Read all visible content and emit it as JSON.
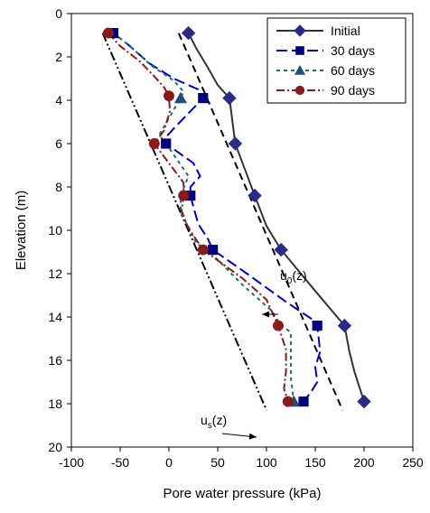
{
  "chart_data": {
    "type": "line",
    "xlabel": "Pore water pressure (kPa)",
    "ylabel": "Elevation (m)",
    "xlim": [
      -100,
      250
    ],
    "ylim": [
      0,
      20
    ],
    "y_inverted": true,
    "xticks": [
      -100,
      -50,
      0,
      50,
      100,
      150,
      200,
      250
    ],
    "yticks": [
      0,
      2,
      4,
      6,
      8,
      10,
      12,
      14,
      16,
      18,
      20
    ],
    "grid": false,
    "legend_position": "top-right",
    "series": [
      {
        "name": "Initial",
        "color": "#333333",
        "marker_color": "#2a2a8c",
        "marker": "diamond",
        "dash": "solid",
        "x": [
          20,
          28,
          40,
          50,
          62,
          68,
          78,
          88,
          100,
          115,
          150,
          180,
          185,
          190,
          200
        ],
        "y": [
          0.9,
          1.6,
          2.5,
          3.3,
          3.9,
          6.0,
          7.2,
          8.4,
          9.8,
          10.9,
          12.8,
          14.4,
          15.6,
          16.5,
          17.9
        ]
      },
      {
        "name": "30 days",
        "color": "#0000cc",
        "marker_color": "#000080",
        "marker": "square",
        "dash": "longdash",
        "x": [
          -57,
          -40,
          -20,
          5,
          30,
          35,
          20,
          5,
          -5,
          -3,
          25,
          32,
          22,
          22,
          25,
          30,
          40,
          45,
          80,
          120,
          150,
          152,
          155,
          150,
          152,
          145,
          138
        ],
        "y": [
          0.9,
          1.5,
          2.3,
          3.0,
          3.5,
          3.9,
          4.6,
          5.3,
          5.8,
          6.0,
          6.9,
          7.5,
          8.0,
          8.4,
          8.9,
          9.7,
          10.4,
          10.9,
          12.0,
          13.3,
          14.2,
          14.4,
          15.6,
          16.3,
          17.0,
          17.5,
          17.9
        ]
      },
      {
        "name": "60 days",
        "color": "#1f6f6f",
        "marker_color": "#1f4e79",
        "marker": "triangle",
        "dash": "shortdash",
        "x": [
          -57,
          -40,
          -18,
          5,
          15,
          12,
          -10,
          -3,
          20,
          12,
          12,
          22,
          28,
          40,
          75,
          105,
          115,
          125,
          125,
          125,
          128
        ],
        "y": [
          0.9,
          1.5,
          2.4,
          3.1,
          3.6,
          3.9,
          5.6,
          6.0,
          7.5,
          8.4,
          9.2,
          10.0,
          10.6,
          10.9,
          12.5,
          13.7,
          14.4,
          14.7,
          15.8,
          16.8,
          17.9
        ]
      },
      {
        "name": "90 days",
        "color": "#8b1a1a",
        "marker_color": "#8b1a1a",
        "marker": "circle",
        "dash": "dashdot",
        "x": [
          -62,
          -50,
          -30,
          -15,
          -5,
          0,
          1,
          -5,
          -15,
          5,
          15,
          15,
          13,
          20,
          35,
          75,
          100,
          112,
          120,
          120,
          118,
          122
        ],
        "y": [
          0.9,
          1.5,
          2.2,
          2.9,
          3.4,
          3.8,
          4.5,
          5.4,
          6.0,
          7.2,
          7.8,
          8.4,
          9.1,
          9.9,
          10.9,
          12.2,
          13.2,
          14.4,
          15.5,
          16.5,
          17.3,
          17.9
        ]
      }
    ],
    "reference_lines": [
      {
        "label_main": "u",
        "label_sub": "0",
        "label_tail": "(z)",
        "style": "dashed",
        "x": [
          10,
          178
        ],
        "y": [
          0.9,
          18.3
        ]
      },
      {
        "label_main": "u",
        "label_sub": "s",
        "label_tail": "(z)",
        "style": "dashdotdot",
        "x": [
          -68,
          100
        ],
        "y": [
          0.9,
          18.3
        ]
      }
    ]
  }
}
